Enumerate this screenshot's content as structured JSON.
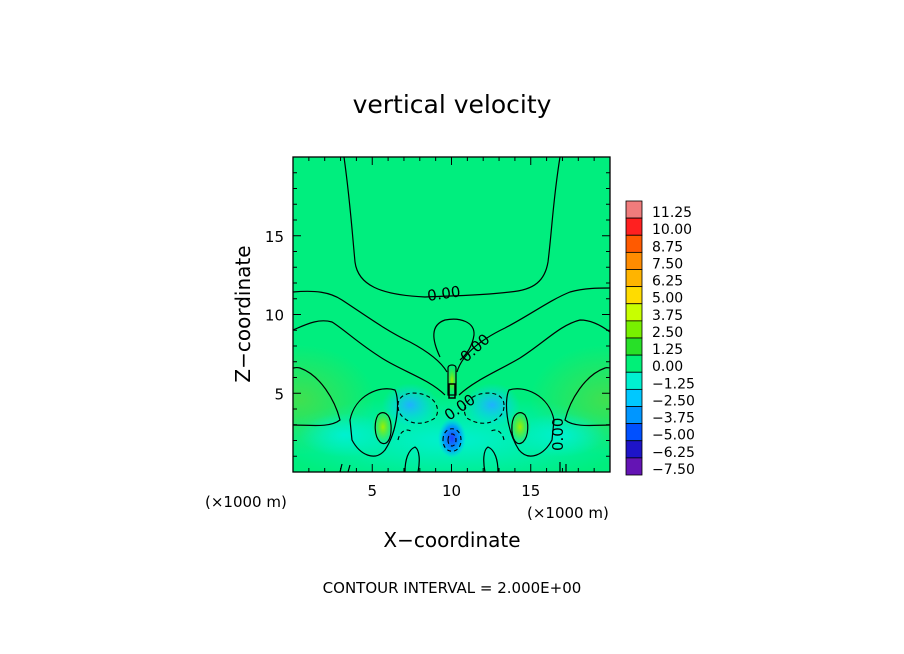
{
  "chart_data": {
    "type": "heatmap",
    "title": "vertical velocity",
    "xlabel": "X−coordinate",
    "ylabel": "Z−coordinate",
    "x_unit": "(×1000 m)",
    "z_unit": "(×1000 m)",
    "xlim": [
      0,
      20
    ],
    "ylim": [
      0,
      20
    ],
    "x_ticks": [
      5,
      10,
      15
    ],
    "y_ticks": [
      5,
      10,
      15
    ],
    "footer": "CONTOUR INTERVAL = 2.000E+00",
    "contour_labels": [
      "0.00",
      "0.00",
      "0.00",
      "0.00"
    ],
    "colorbar": {
      "levels": [
        "11.25",
        "10.00",
        "8.75",
        "7.50",
        "6.25",
        "5.00",
        "3.75",
        "2.50",
        "1.25",
        "0.00",
        "−1.25",
        "−2.50",
        "−3.75",
        "−5.00",
        "−6.25",
        "−7.50"
      ],
      "colors": [
        "#f07c7c",
        "#ff2020",
        "#ff5a00",
        "#ff8c00",
        "#ffb400",
        "#ffdc00",
        "#c8ff00",
        "#78f000",
        "#28e028",
        "#00f078",
        "#00f0d0",
        "#00c8ff",
        "#0096ff",
        "#0050ff",
        "#1e14c8",
        "#6414b4"
      ]
    }
  }
}
